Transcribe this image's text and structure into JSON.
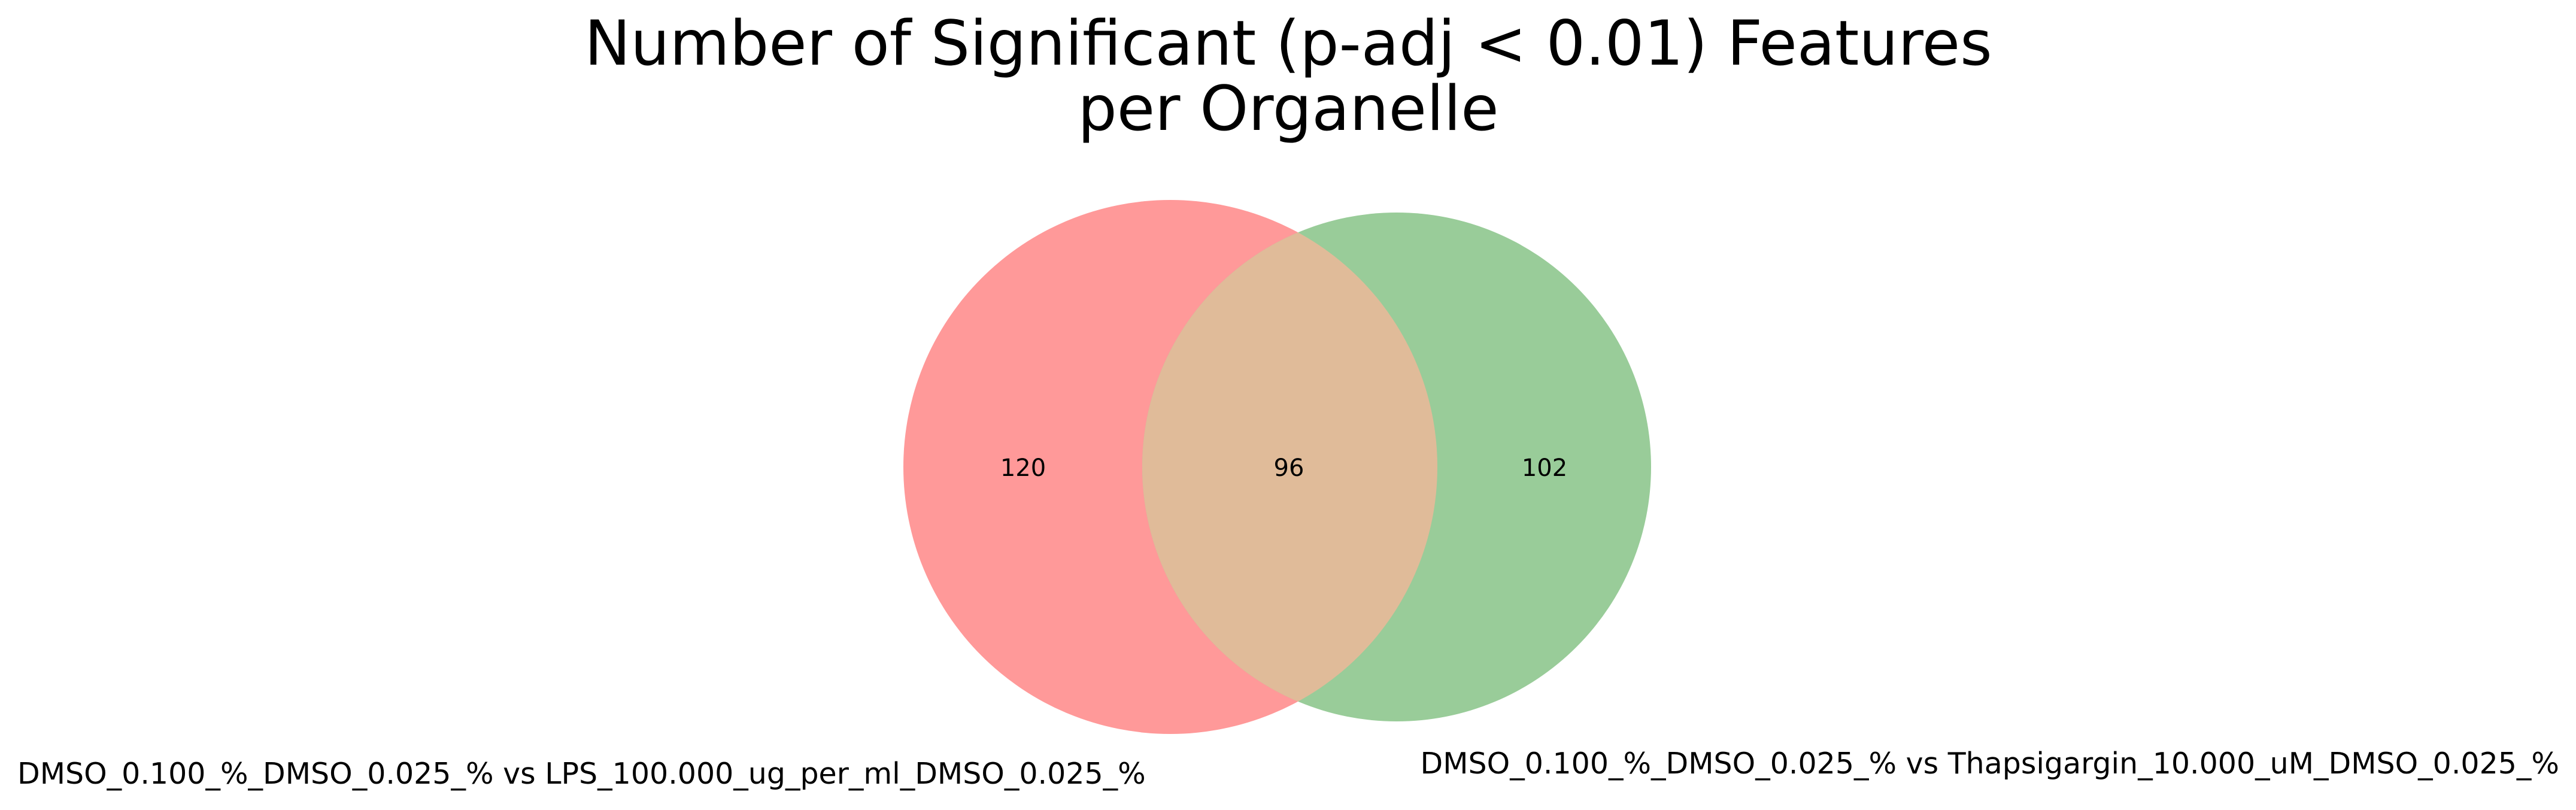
{
  "title": {
    "line1": "Number of Significant (p-adj < 0.01) Features",
    "line2": "per Organelle"
  },
  "sets": {
    "left": {
      "label": "DMSO_0.100_%_DMSO_0.025_% vs LPS_100.000_ug_per_ml_DMSO_0.025_%",
      "color": "#ff9999"
    },
    "right": {
      "label": "DMSO_0.100_%_DMSO_0.025_% vs Thapsigargin_10.000_uM_DMSO_0.025_%",
      "color": "#99cc99"
    },
    "overlap_color": "#e0bb99"
  },
  "counts": {
    "left_only": "120",
    "overlap": "96",
    "right_only": "102"
  }
}
